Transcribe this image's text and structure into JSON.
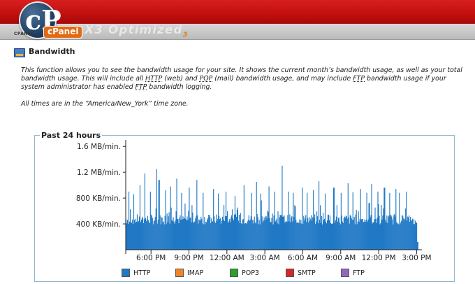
{
  "header": {
    "logo_glyph": "cP",
    "small_text": "CPANEL",
    "brand": "cPanel",
    "theme": "X3 Optimized",
    "theme_sub": "3"
  },
  "page": {
    "title": "Bandwidth",
    "icon": "bandwidth-icon",
    "description_parts": [
      "This function allows you to see the bandwidth usage for your site. It shows the current month’s bandwidth usage, as well as your total bandwidth usage. This will include all ",
      "HTTP",
      " (web) and ",
      "POP",
      " (mail) bandwidth usage, and may include ",
      "FTP",
      " bandwidth usage if your system administrator has enabled ",
      "FTP",
      " bandwidth logging."
    ],
    "timezone_note": "All times are in the “America/New_York” time zone."
  },
  "chart_data": {
    "type": "bar",
    "title": "Past 24 hours",
    "ytick_labels": [
      "1.6 MB/min.",
      "1.2 MB/min.",
      "800 KB/min.",
      "400 KB/min."
    ],
    "ytick_values": [
      1600,
      1200,
      800,
      400
    ],
    "ylim": [
      0,
      1700
    ],
    "y_unit": "KB/min.",
    "xtick_labels": [
      "6:00 PM",
      "9:00 PM",
      "12:00 AM",
      "3:00 AM",
      "6:00 AM",
      "9:00 AM",
      "12:00 PM",
      "3:00 PM"
    ],
    "xtick_hours": [
      2,
      5,
      8,
      11,
      14,
      17,
      20,
      23
    ],
    "x_range_hours": [
      0,
      23.2
    ],
    "legend": [
      {
        "name": "HTTP",
        "color": "#2179c5"
      },
      {
        "name": "IMAP",
        "color": "#ee8427"
      },
      {
        "name": "POP3",
        "color": "#2ca02c"
      },
      {
        "name": "SMTP",
        "color": "#d62728"
      },
      {
        "name": "FTP",
        "color": "#9467bd"
      }
    ],
    "series": [
      {
        "name": "HTTP",
        "color": "#2179c5",
        "baseline": 470,
        "peaks": [
          [
            0.2,
            900
          ],
          [
            0.6,
            860
          ],
          [
            1.1,
            1000
          ],
          [
            1.5,
            1180
          ],
          [
            1.9,
            900
          ],
          [
            2.4,
            1250
          ],
          [
            2.6,
            1080
          ],
          [
            3.1,
            920
          ],
          [
            3.5,
            980
          ],
          [
            4.0,
            1100
          ],
          [
            4.4,
            880
          ],
          [
            5.0,
            960
          ],
          [
            5.6,
            1080
          ],
          [
            6.1,
            880
          ],
          [
            6.9,
            940
          ],
          [
            7.3,
            870
          ],
          [
            7.9,
            900
          ],
          [
            8.6,
            830
          ],
          [
            9.3,
            1000
          ],
          [
            9.9,
            880
          ],
          [
            10.3,
            1050
          ],
          [
            10.6,
            870
          ],
          [
            11.3,
            980
          ],
          [
            11.7,
            900
          ],
          [
            12.3,
            1300
          ],
          [
            12.8,
            900
          ],
          [
            13.2,
            880
          ],
          [
            13.9,
            960
          ],
          [
            14.3,
            880
          ],
          [
            14.8,
            920
          ],
          [
            15.2,
            1060
          ],
          [
            15.7,
            870
          ],
          [
            16.4,
            960
          ],
          [
            17.0,
            880
          ],
          [
            17.5,
            1030
          ],
          [
            17.9,
            890
          ],
          [
            18.5,
            940
          ],
          [
            19.0,
            880
          ],
          [
            19.4,
            1020
          ],
          [
            19.9,
            900
          ],
          [
            20.4,
            960
          ],
          [
            20.8,
            880
          ],
          [
            21.3,
            940
          ],
          [
            21.6,
            880
          ],
          [
            22.1,
            900
          ],
          [
            22.6,
            1180
          ],
          [
            22.9,
            900
          ]
        ],
        "end_level": 120
      }
    ]
  }
}
